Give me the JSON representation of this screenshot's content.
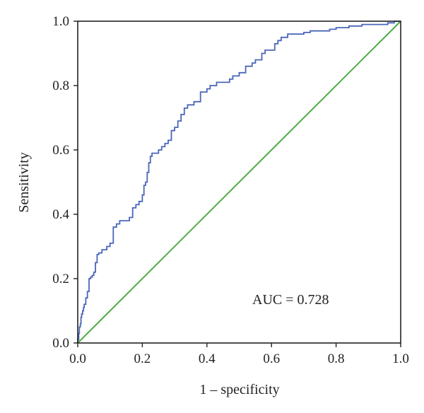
{
  "chart_data": {
    "type": "line",
    "title": "",
    "xlabel": "1 – specificity",
    "ylabel": "Sensitivity",
    "xlim": [
      0.0,
      1.0
    ],
    "ylim": [
      0.0,
      1.0
    ],
    "x_ticks": [
      "0.0",
      "0.2",
      "0.4",
      "0.6",
      "0.8",
      "1.0"
    ],
    "y_ticks": [
      "0.0",
      "0.2",
      "0.4",
      "0.6",
      "0.8",
      "1.0"
    ],
    "grid": false,
    "legend": "none",
    "annotation": "AUC = 0.728",
    "colors": {
      "roc": "#4a66b8",
      "reference": "#4fac46",
      "frame": "#222222"
    },
    "series": [
      {
        "x": [
          0.0,
          0.003,
          0.005,
          0.008,
          0.01,
          0.012,
          0.015,
          0.018,
          0.02,
          0.025,
          0.03,
          0.035,
          0.04,
          0.045,
          0.05,
          0.055,
          0.06,
          0.065,
          0.07,
          0.075,
          0.08,
          0.09,
          0.1,
          0.11,
          0.12,
          0.125,
          0.13,
          0.14,
          0.15,
          0.16,
          0.17,
          0.18,
          0.19,
          0.2,
          0.205,
          0.21,
          0.215,
          0.22,
          0.225,
          0.23,
          0.24,
          0.25,
          0.26,
          0.27,
          0.28,
          0.29,
          0.3,
          0.31,
          0.32,
          0.33,
          0.34,
          0.35,
          0.36,
          0.37,
          0.38,
          0.39,
          0.4,
          0.41,
          0.42,
          0.43,
          0.44,
          0.45,
          0.46,
          0.47,
          0.48,
          0.5,
          0.52,
          0.53,
          0.54,
          0.55,
          0.56,
          0.57,
          0.58,
          0.6,
          0.61,
          0.62,
          0.63,
          0.64,
          0.65,
          0.66,
          0.68,
          0.7,
          0.72,
          0.74,
          0.76,
          0.78,
          0.8,
          0.82,
          0.84,
          0.86,
          0.88,
          0.9,
          0.92,
          0.94,
          0.96,
          0.98,
          1.0
        ],
        "y": [
          0.0,
          0.01,
          0.03,
          0.05,
          0.06,
          0.08,
          0.09,
          0.1,
          0.11,
          0.12,
          0.14,
          0.16,
          0.2,
          0.205,
          0.21,
          0.22,
          0.25,
          0.275,
          0.28,
          0.28,
          0.29,
          0.29,
          0.3,
          0.31,
          0.36,
          0.37,
          0.37,
          0.38,
          0.38,
          0.38,
          0.39,
          0.42,
          0.43,
          0.44,
          0.46,
          0.49,
          0.5,
          0.53,
          0.56,
          0.58,
          0.59,
          0.59,
          0.6,
          0.61,
          0.62,
          0.63,
          0.66,
          0.67,
          0.69,
          0.71,
          0.73,
          0.74,
          0.74,
          0.75,
          0.75,
          0.78,
          0.78,
          0.79,
          0.8,
          0.8,
          0.81,
          0.81,
          0.81,
          0.81,
          0.82,
          0.83,
          0.84,
          0.86,
          0.86,
          0.87,
          0.88,
          0.88,
          0.9,
          0.91,
          0.91,
          0.93,
          0.94,
          0.95,
          0.95,
          0.96,
          0.96,
          0.96,
          0.965,
          0.97,
          0.97,
          0.97,
          0.975,
          0.98,
          0.98,
          0.985,
          0.985,
          0.99,
          0.99,
          0.99,
          0.99,
          0.995,
          1.0
        ]
      },
      {
        "x": [
          0.0,
          1.0
        ],
        "y": [
          0.0,
          1.0
        ]
      }
    ]
  }
}
